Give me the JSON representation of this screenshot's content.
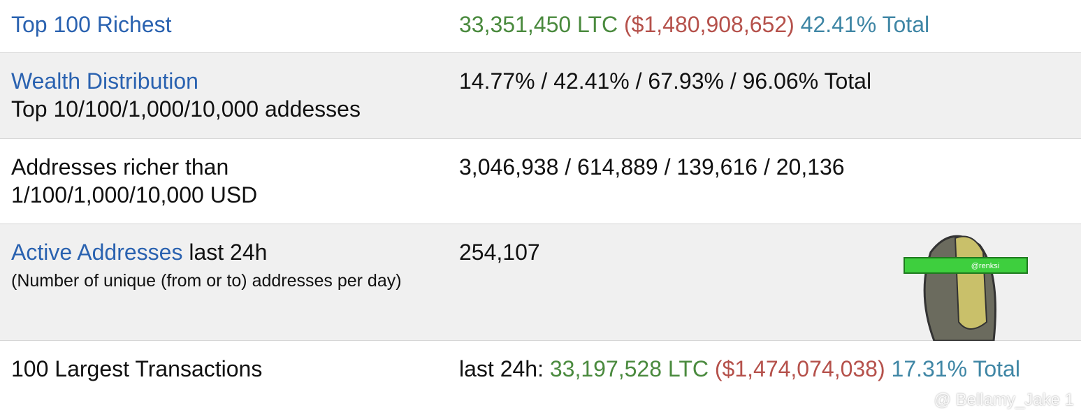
{
  "rows": [
    {
      "link": "Top 100 Richest",
      "amount": "33,351,450 LTC",
      "usd": "($1,480,908,652)",
      "share": "42.41% Total"
    },
    {
      "link": "Wealth Distribution",
      "text": "Top 10/100/1,000/10,000 addesses",
      "value": "14.77% / 42.41% / 67.93% / 96.06% Total"
    },
    {
      "text": [
        "Addresses richer than",
        "1/100/1,000/10,000 USD"
      ],
      "value": "3,046,938 / 614,889 / 139,616 / 20,136"
    },
    {
      "link": "Active Addresses",
      "text": "last 24h",
      "note": "(Number of unique (from or to) addresses per day)",
      "value": "254,107"
    },
    {
      "text": "100 Largest Transactions",
      "prefix": "last 24h:",
      "amount": "33,197,528 LTC",
      "usd": "($1,474,074,038)",
      "share": "17.31% Total"
    }
  ],
  "sticker": "@renksi",
  "watermark": "@ Bellamy_Jake 1"
}
